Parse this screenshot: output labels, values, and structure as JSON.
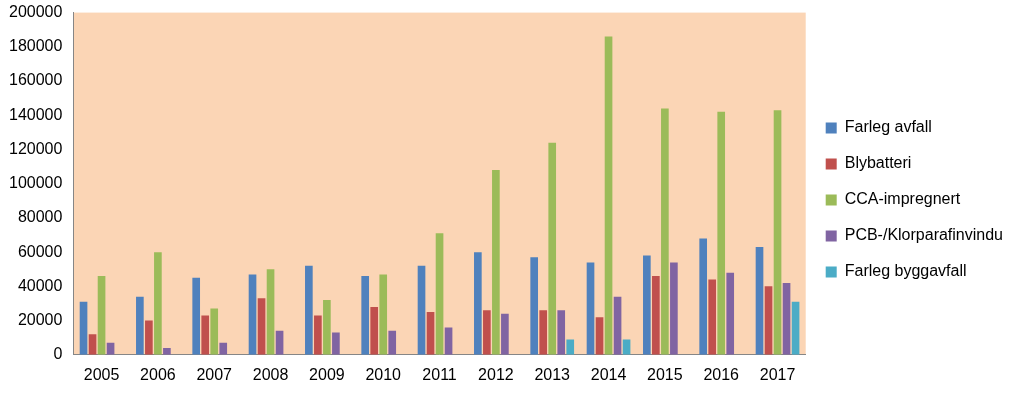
{
  "chart_data": {
    "type": "bar",
    "categories": [
      "2005",
      "2006",
      "2007",
      "2008",
      "2009",
      "2010",
      "2011",
      "2012",
      "2013",
      "2014",
      "2015",
      "2016",
      "2017"
    ],
    "series": [
      {
        "name": "Farleg avfall",
        "color": "#4f81bd",
        "values": [
          31000,
          34000,
          45000,
          47000,
          52000,
          46000,
          52000,
          60000,
          57000,
          54000,
          58000,
          68000,
          63000
        ]
      },
      {
        "name": "Blybatteri",
        "color": "#c0504d",
        "values": [
          12000,
          20000,
          23000,
          33000,
          23000,
          28000,
          25000,
          26000,
          26000,
          22000,
          46000,
          44000,
          40000
        ]
      },
      {
        "name": "CCA-impregnert",
        "color": "#9bbb59",
        "values": [
          46000,
          60000,
          27000,
          50000,
          32000,
          47000,
          71000,
          108000,
          124000,
          186000,
          144000,
          142000,
          143000
        ]
      },
      {
        "name": "PCB-/Klorparafinvindu",
        "color": "#8064a2",
        "values": [
          7000,
          4000,
          7000,
          14000,
          13000,
          14000,
          16000,
          24000,
          26000,
          34000,
          54000,
          48000,
          42000
        ]
      },
      {
        "name": "Farleg byggavfall",
        "color": "#4bacc6",
        "values": [
          null,
          null,
          null,
          null,
          null,
          null,
          null,
          null,
          9000,
          9000,
          null,
          null,
          31000
        ]
      }
    ],
    "ylim": [
      0,
      200000
    ],
    "yticks": [
      0,
      20000,
      40000,
      60000,
      80000,
      100000,
      120000,
      140000,
      160000,
      180000,
      200000
    ],
    "grid": false,
    "legend": "right"
  }
}
